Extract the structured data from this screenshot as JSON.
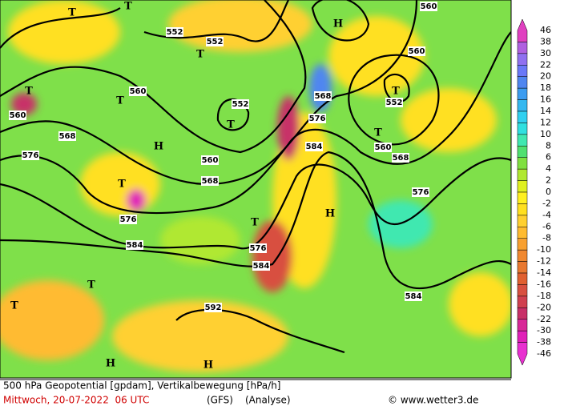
{
  "map": {
    "contour_labels": [
      552,
      552,
      552,
      552,
      560,
      560,
      560,
      560,
      560,
      560,
      568,
      568,
      568,
      568,
      576,
      576,
      576,
      576,
      576,
      584,
      584,
      584,
      584,
      592
    ],
    "pressure_labels": [
      "T",
      "T",
      "T",
      "T",
      "T",
      "T",
      "T",
      "T",
      "T",
      "T",
      "T",
      "T",
      "H",
      "H",
      "H",
      "H",
      "H"
    ],
    "colorbar": {
      "labels": [
        46,
        38,
        30,
        22,
        20,
        18,
        16,
        14,
        12,
        10,
        8,
        6,
        4,
        2,
        0,
        -2,
        -4,
        -6,
        -8,
        -10,
        -12,
        -14,
        -16,
        -18,
        -20,
        -22,
        -30,
        -38,
        -46
      ],
      "colors": [
        "#e040c0",
        "#b060e0",
        "#9070f0",
        "#6a78f8",
        "#4f86f0",
        "#3c9cf0",
        "#35b8f0",
        "#30d0f0",
        "#30e0e0",
        "#40e8b0",
        "#50e070",
        "#80e040",
        "#b0e830",
        "#e0f020",
        "#fff020",
        "#ffe020",
        "#ffd030",
        "#ffbb30",
        "#f8a030",
        "#f08830",
        "#e87830",
        "#e06030",
        "#d85040",
        "#d04050",
        "#c83068",
        "#d82898",
        "#e020b8",
        "#e830d0"
      ]
    },
    "footer": {
      "title": "500 hPa Geopotential [gpdam], Vertikalbewegung [hPa/h]",
      "date": "Mittwoch, 20-07-2022  06 UTC",
      "model": "(GFS)",
      "run": "(Analyse)",
      "credit": "© www.wetter3.de"
    }
  }
}
